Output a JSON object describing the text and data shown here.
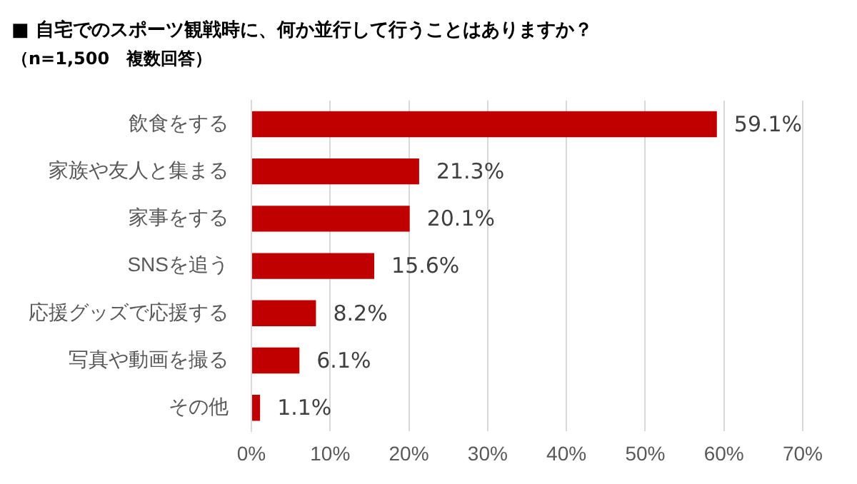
{
  "chart_data": {
    "type": "bar",
    "orientation": "horizontal",
    "title": "■ 自宅でのスポーツ観戦時に、何か並行して行うことはありますか？",
    "subtitle": "（n=1,500　複数回答）",
    "categories": [
      "飲食をする",
      "家族や友人と集まる",
      "家事をする",
      "SNSを追う",
      "応援グッズで応援する",
      "写真や動画を撮る",
      "その他"
    ],
    "values": [
      59.1,
      21.3,
      20.1,
      15.6,
      8.2,
      6.1,
      1.1
    ],
    "value_labels": [
      "59.1%",
      "21.3%",
      "20.1%",
      "15.6%",
      "8.2%",
      "6.1%",
      "1.1%"
    ],
    "color": "#c00000",
    "xlim": [
      0,
      70
    ],
    "xticks": [
      {
        "value": 0,
        "label": "0%"
      },
      {
        "value": 10,
        "label": "10%"
      },
      {
        "value": 20,
        "label": "20%"
      },
      {
        "value": 30,
        "label": "30%"
      },
      {
        "value": 40,
        "label": "40%"
      },
      {
        "value": 50,
        "label": "50%"
      },
      {
        "value": 60,
        "label": "60%"
      },
      {
        "value": 70,
        "label": "70%"
      }
    ],
    "grid": "x",
    "legend": false
  }
}
